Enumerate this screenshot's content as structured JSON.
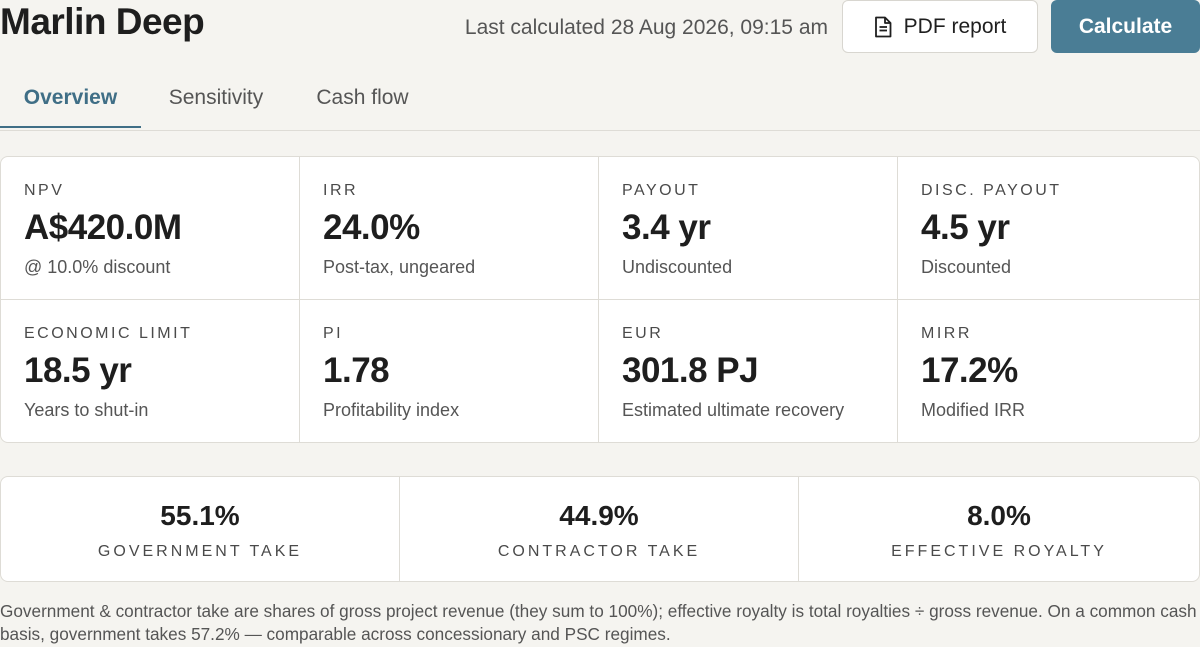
{
  "header": {
    "title": "Marlin Deep",
    "last_calculated": "Last calculated 28 Aug 2026, 09:15 am",
    "pdf_button_label": "PDF report",
    "pdf_button_icon": "document-icon",
    "calculate_button_label": "Calculate"
  },
  "tabs": [
    {
      "label": "Overview",
      "active": true
    },
    {
      "label": "Sensitivity",
      "active": false
    },
    {
      "label": "Cash flow",
      "active": false
    }
  ],
  "metrics": [
    {
      "label": "NPV",
      "value": "A$420.0M",
      "sub": "@ 10.0% discount"
    },
    {
      "label": "IRR",
      "value": "24.0%",
      "sub": "Post-tax, ungeared"
    },
    {
      "label": "PAYOUT",
      "value": "3.4 yr",
      "sub": "Undiscounted"
    },
    {
      "label": "DISC. PAYOUT",
      "value": "4.5 yr",
      "sub": "Discounted"
    },
    {
      "label": "ECONOMIC LIMIT",
      "value": "18.5 yr",
      "sub": "Years to shut-in"
    },
    {
      "label": "PI",
      "value": "1.78",
      "sub": "Profitability index"
    },
    {
      "label": "EUR",
      "value": "301.8 PJ",
      "sub": "Estimated ultimate recovery"
    },
    {
      "label": "MIRR",
      "value": "17.2%",
      "sub": "Modified IRR"
    }
  ],
  "takes": [
    {
      "value": "55.1%",
      "label": "GOVERNMENT TAKE"
    },
    {
      "value": "44.9%",
      "label": "CONTRACTOR TAKE"
    },
    {
      "value": "8.0%",
      "label": "EFFECTIVE ROYALTY"
    }
  ],
  "footnote": "Government & contractor take are shares of gross project revenue (they sum to 100%); effective royalty is total royalties ÷ gross revenue. On a common cash basis, government takes 57.2% — comparable across concessionary and PSC regimes.",
  "colors": {
    "accent": "#4a7d95",
    "active_tab": "#3f6e86",
    "background": "#f5f4f0",
    "card": "#ffffff",
    "border": "#dedcd6"
  }
}
